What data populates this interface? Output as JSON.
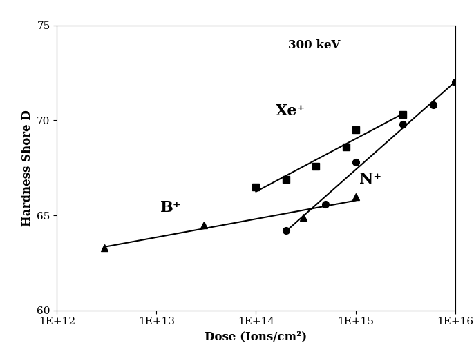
{
  "chart_data": {
    "type": "scatter",
    "x_label": "Dose (Ions/cm²)",
    "y_label": "Hardness Shore D",
    "annotations": [
      "300 keV",
      "Xe⁺",
      "N⁺",
      "B⁺"
    ],
    "log": "x",
    "grid": false,
    "xlim": [
      1000000000000.0,
      1e+16
    ],
    "xticks": [
      {
        "value": 1000000000000.0,
        "label": "1E+12"
      },
      {
        "value": 10000000000000.0,
        "label": "1E+13"
      },
      {
        "value": 100000000000000.0,
        "label": "1E+14"
      },
      {
        "value": 1000000000000000.0,
        "label": "1E+15"
      },
      {
        "value": 1e+16,
        "label": "1E+16"
      }
    ],
    "ylim": [
      60,
      75
    ],
    "yticks": [
      60,
      65,
      70,
      75
    ],
    "series": [
      {
        "name": "Xe⁺",
        "color": "#000000",
        "marker": "square",
        "line_style": "trend",
        "x": [
          100000000000000.0,
          200000000000000.0,
          400000000000000.0,
          800000000000000.0,
          1000000000000000.0,
          3000000000000000.0
        ],
        "values": [
          66.5,
          66.9,
          67.6,
          68.6,
          69.5,
          70.3
        ]
      },
      {
        "name": "N⁺",
        "color": "#000000",
        "marker": "circle",
        "line_style": "trend",
        "x": [
          200000000000000.0,
          500000000000000.0,
          1000000000000000.0,
          3000000000000000.0,
          6000000000000000.0,
          1e+16
        ],
        "values": [
          64.2,
          65.6,
          67.8,
          69.8,
          70.8,
          72.0
        ]
      },
      {
        "name": "B⁺",
        "color": "#000000",
        "marker": "triangle",
        "line_style": "trend",
        "x": [
          3000000000000.0,
          30000000000000.0,
          300000000000000.0,
          1000000000000000.0
        ],
        "values": [
          63.3,
          64.5,
          64.9,
          66.0
        ]
      }
    ]
  }
}
